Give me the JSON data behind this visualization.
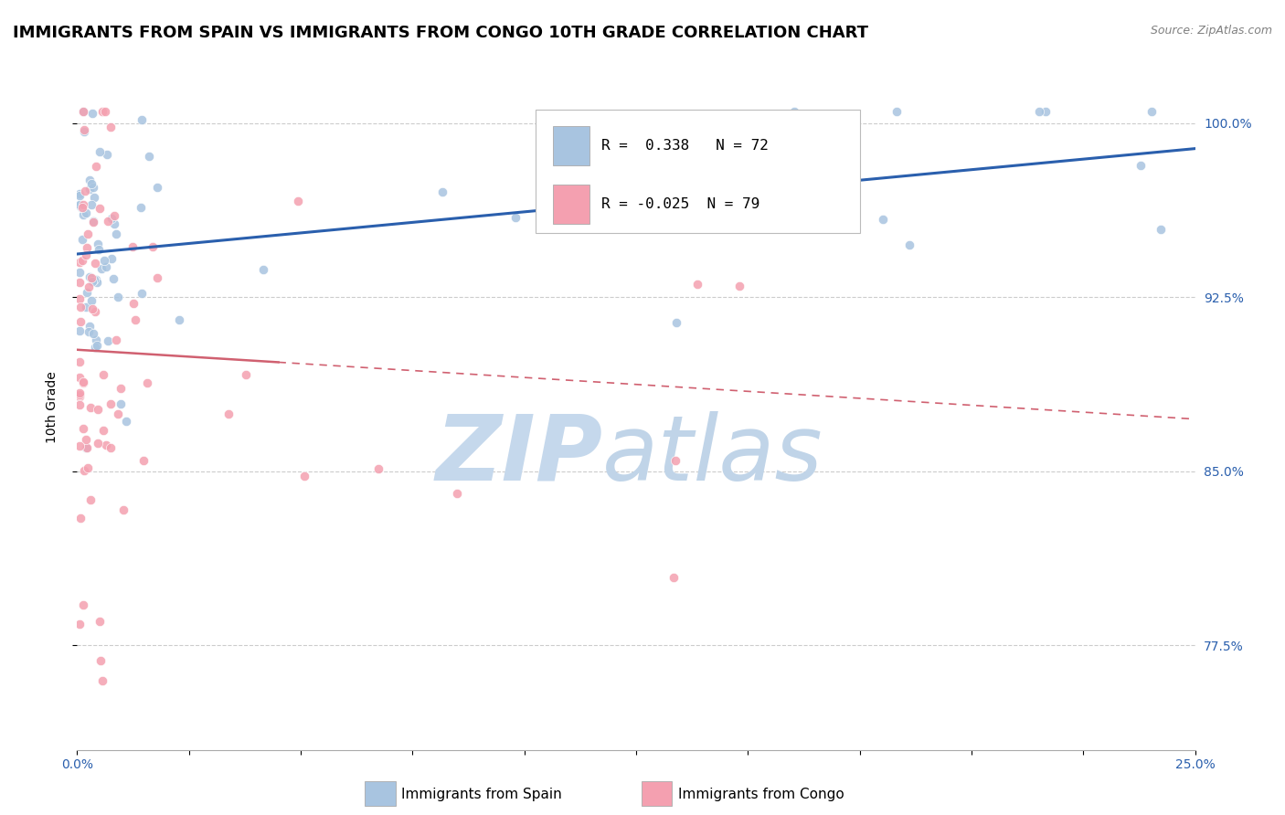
{
  "title": "IMMIGRANTS FROM SPAIN VS IMMIGRANTS FROM CONGO 10TH GRADE CORRELATION CHART",
  "source": "Source: ZipAtlas.com",
  "ylabel": "10th Grade",
  "yticks": [
    77.5,
    85.0,
    92.5,
    100.0
  ],
  "ytick_labels": [
    "77.5%",
    "85.0%",
    "92.5%",
    "100.0%"
  ],
  "xmin": 0.0,
  "xmax": 25.0,
  "ymin": 73.0,
  "ymax": 102.5,
  "spain_R": 0.338,
  "spain_N": 72,
  "congo_R": -0.025,
  "congo_N": 79,
  "spain_color": "#a8c4e0",
  "congo_color": "#f4a0b0",
  "spain_line_color": "#2a5fad",
  "congo_line_color": "#d06070",
  "legend_spain_label": "Immigrants from Spain",
  "legend_congo_label": "Immigrants from Congo",
  "watermark_zip_color": "#c5d8ec",
  "watermark_atlas_color": "#c0d4e8",
  "title_fontsize": 13,
  "axis_label_fontsize": 10,
  "tick_fontsize": 10,
  "legend_fontsize": 11,
  "spain_line_y0": 91.8,
  "spain_line_y1": 100.0,
  "congo_line_y0": 93.5,
  "congo_line_y1": 89.5
}
